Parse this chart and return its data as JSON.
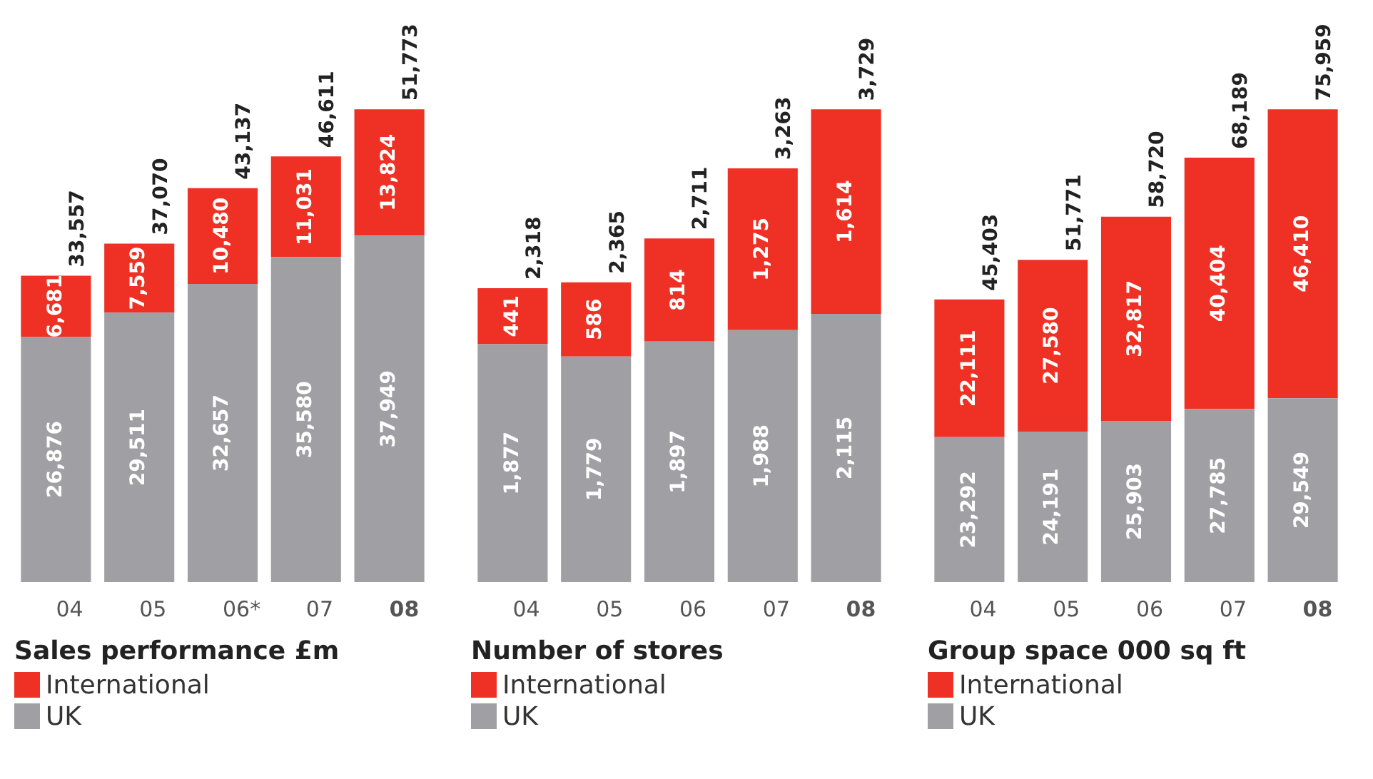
{
  "chart_data": [
    {
      "type": "bar",
      "title": "Sales performance £m",
      "categories": [
        "04",
        "05",
        "06*",
        "07",
        "08"
      ],
      "stacked": true,
      "legend": "bottom",
      "series": [
        {
          "name": "UK",
          "color": "#a09fa4",
          "values": [
            26876,
            29511,
            32657,
            35580,
            37949
          ],
          "value_labels": [
            "26,876",
            "29,511",
            "32,657",
            "35,580",
            "37,949"
          ]
        },
        {
          "name": "International",
          "color": "#ee3124",
          "values": [
            6681,
            7559,
            10480,
            11031,
            13824
          ],
          "value_labels": [
            "6,681",
            "7,559",
            "10,480",
            "11,031",
            "13,824"
          ]
        }
      ],
      "totals": [
        "33,557",
        "37,070",
        "43,137",
        "46,611",
        "51,773"
      ]
    },
    {
      "type": "bar",
      "title": "Number of stores",
      "categories": [
        "04",
        "05",
        "06",
        "07",
        "08"
      ],
      "stacked": true,
      "legend": "bottom",
      "series": [
        {
          "name": "UK",
          "color": "#a09fa4",
          "values": [
            1877,
            1779,
            1897,
            1988,
            2115
          ],
          "value_labels": [
            "1,877",
            "1,779",
            "1,897",
            "1,988",
            "2,115"
          ]
        },
        {
          "name": "International",
          "color": "#ee3124",
          "values": [
            441,
            586,
            814,
            1275,
            1614
          ],
          "value_labels": [
            "441",
            "586",
            "814",
            "1,275",
            "1,614"
          ]
        }
      ],
      "totals": [
        "2,318",
        "2,365",
        "2,711",
        "3,263",
        "3,729"
      ]
    },
    {
      "type": "bar",
      "title": "Group space 000 sq ft",
      "categories": [
        "04",
        "05",
        "06",
        "07",
        "08"
      ],
      "stacked": true,
      "legend": "bottom",
      "series": [
        {
          "name": "UK",
          "color": "#a09fa4",
          "values": [
            23292,
            24191,
            25903,
            27785,
            29549
          ],
          "value_labels": [
            "23,292",
            "24,191",
            "25,903",
            "27,785",
            "29,549"
          ]
        },
        {
          "name": "International",
          "color": "#ee3124",
          "values": [
            22111,
            27580,
            32817,
            40404,
            46410
          ],
          "value_labels": [
            "22,111",
            "27,580",
            "32,817",
            "40,404",
            "46,410"
          ]
        }
      ],
      "totals": [
        "45,403",
        "51,771",
        "58,720",
        "68,189",
        "75,959"
      ]
    }
  ]
}
